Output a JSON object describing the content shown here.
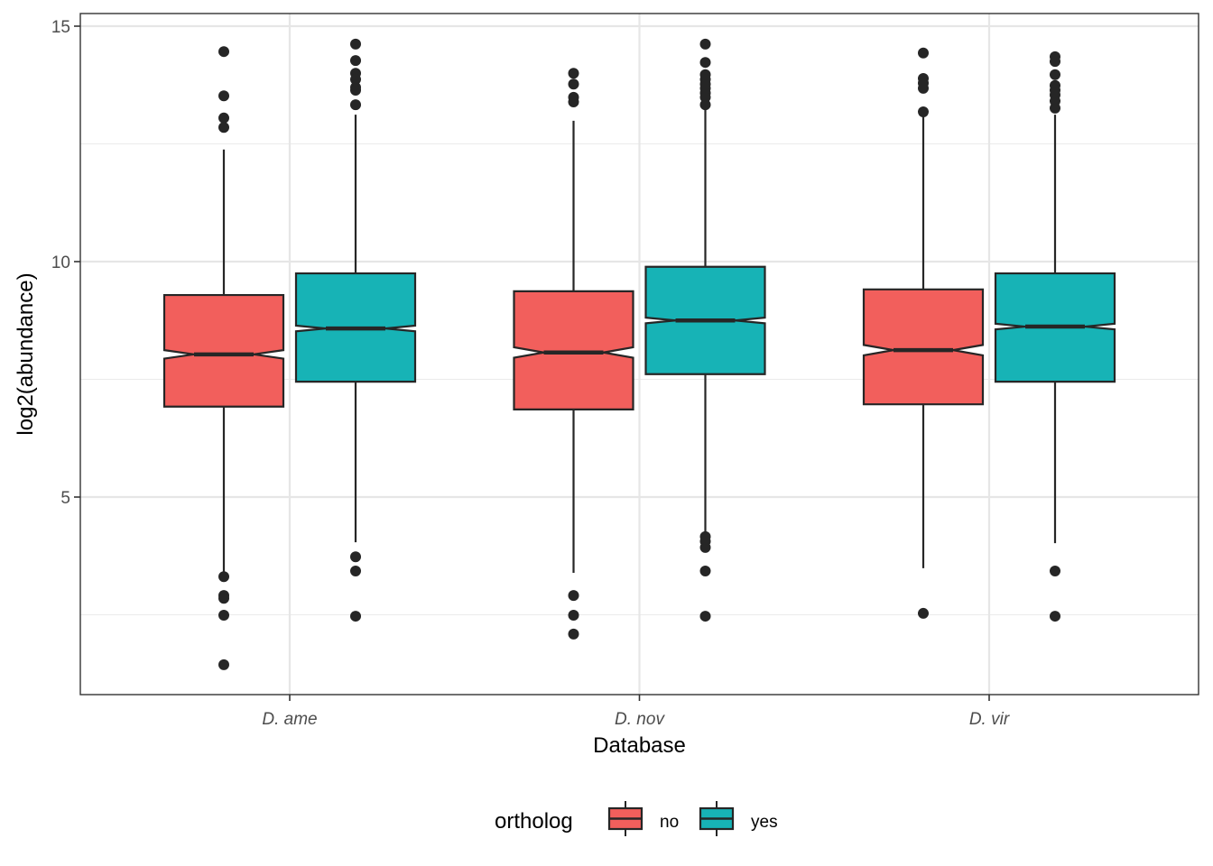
{
  "chart_data": {
    "type": "boxplot",
    "notched": true,
    "title": "",
    "xlabel": "Database",
    "ylabel": "log2(abundance)",
    "ylim": [
      1.0,
      15.3
    ],
    "yticks": [
      5,
      10,
      15
    ],
    "yticks_minor": [
      2.5,
      7.5,
      12.5
    ],
    "grid": true,
    "categories": [
      "D. ame",
      "D. nov",
      "D. vir"
    ],
    "legend": {
      "title": "ortholog",
      "position": "bottom",
      "entries": [
        {
          "label": "no",
          "color": "#F8766D"
        },
        {
          "label": "yes",
          "color": "#00BFC4"
        }
      ]
    },
    "series": [
      {
        "name": "no",
        "color": "#F25F5C",
        "boxes": [
          {
            "category": "D. ame",
            "whisker_low": 3.39,
            "q1": 6.92,
            "median": 8.03,
            "q3": 9.29,
            "whisker_high": 12.38,
            "notch_low": 7.94,
            "notch_high": 8.12,
            "outliers": [
              14.46,
              13.52,
              13.05,
              12.85,
              3.31,
              2.91,
              2.85,
              2.49,
              1.44
            ]
          },
          {
            "category": "D. nov",
            "whisker_low": 3.39,
            "q1": 6.86,
            "median": 8.07,
            "q3": 9.37,
            "whisker_high": 12.99,
            "notch_low": 7.96,
            "notch_high": 8.18,
            "outliers": [
              14.0,
              13.77,
              13.49,
              13.39,
              2.91,
              2.49,
              2.09
            ]
          },
          {
            "category": "D. vir",
            "whisker_low": 3.49,
            "q1": 6.97,
            "median": 8.12,
            "q3": 9.41,
            "whisker_high": 13.12,
            "notch_low": 8.01,
            "notch_high": 8.23,
            "outliers": [
              14.43,
              13.89,
              13.79,
              13.68,
              13.18,
              2.53
            ]
          }
        ]
      },
      {
        "name": "yes",
        "color": "#17B3B6",
        "boxes": [
          {
            "category": "D. ame",
            "whisker_low": 4.04,
            "q1": 7.45,
            "median": 8.58,
            "q3": 9.75,
            "whisker_high": 13.12,
            "notch_low": 8.52,
            "notch_high": 8.64,
            "outliers": [
              14.62,
              14.27,
              14.0,
              13.87,
              13.7,
              13.64,
              13.33,
              3.73,
              3.43,
              2.47
            ]
          },
          {
            "category": "D. nov",
            "whisker_low": 4.21,
            "q1": 7.61,
            "median": 8.75,
            "q3": 9.89,
            "whisker_high": 13.3,
            "notch_low": 8.69,
            "notch_high": 8.81,
            "outliers": [
              14.62,
              14.23,
              13.97,
              13.87,
              13.77,
              13.68,
              13.58,
              13.49,
              13.33,
              4.16,
              4.06,
              3.93,
              3.43,
              2.47
            ]
          },
          {
            "category": "D. vir",
            "whisker_low": 4.02,
            "q1": 7.45,
            "median": 8.62,
            "q3": 9.75,
            "whisker_high": 13.12,
            "notch_low": 8.56,
            "notch_high": 8.68,
            "outliers": [
              14.35,
              14.25,
              13.97,
              13.74,
              13.64,
              13.54,
              13.41,
              13.26,
              3.43,
              2.47
            ]
          }
        ]
      }
    ]
  }
}
